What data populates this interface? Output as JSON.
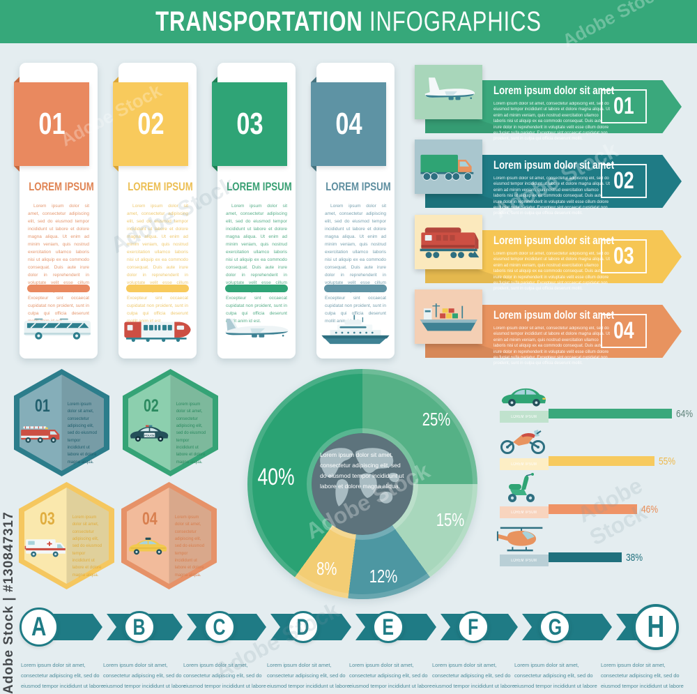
{
  "header": {
    "title_bold": "TRANSPORTATION",
    "title_light": "INFOGRAPHICS",
    "accent": "#36a87a"
  },
  "cards": [
    {
      "number": "01",
      "heading": "LOREM IPSUM",
      "accent": "#e9895f",
      "vehicle": "bus",
      "body": "Lorem ipsum dolor sit amet, consectetur adipiscing elit, sed do eiusmod tempor incididunt ut labore et dolore magna aliqua. Ut enim ad minim veniam, quis nostrud exercitation ullamco laboris nisi ut aliquip ex ea commodo consequat. Duis aute irure dolor in reprehenderit in voluptate velit esse cillum dolore eu fugiat nulla pariatur. Excepteur sint occaecat cupidatat non proident, sunt in culpa qui officia deserunt mollit anim id est."
    },
    {
      "number": "02",
      "heading": "LOREM IPSUM",
      "accent": "#f8ca5c",
      "vehicle": "train",
      "body": "Lorem ipsum dolor sit amet, consectetur adipiscing elit, sed do eiusmod tempor incididunt ut labore et dolore magna aliqua. Ut enim ad minim veniam, quis nostrud exercitation ullamco laboris nisi ut aliquip ex ea commodo consequat. Duis aute irure dolor in reprehenderit in voluptate velit esse cillum dolore eu fugiat nulla pariatur. Excepteur sint occaecat cupidatat non proident, sunt in culpa qui officia deserunt mollit anim id est."
    },
    {
      "number": "03",
      "heading": "LOREM IPSUM",
      "accent": "#2fa476",
      "vehicle": "airplane",
      "body": "Lorem ipsum dolor sit amet, consectetur adipiscing elit, sed do eiusmod tempor incididunt ut labore et dolore magna aliqua. Ut enim ad minim veniam, quis nostrud exercitation ullamco laboris nisi ut aliquip ex ea commodo consequat. Duis aute irure dolor in reprehenderit in voluptate velit esse cillum dolore eu fugiat nulla pariatur. Excepteur sint occaecat cupidatat non proident, sunt in culpa qui officia deserunt mollit anim id est."
    },
    {
      "number": "04",
      "heading": "LOREM IPSUM",
      "accent": "#5e93a4",
      "vehicle": "yacht",
      "body": "Lorem ipsum dolor sit amet, consectetur adipiscing elit, sed do eiusmod tempor incididunt ut labore et dolore magna aliqua. Ut enim ad minim veniam, quis nostrud exercitation ullamco laboris nisi ut aliquip ex ea commodo consequat. Duis aute irure dolor in reprehenderit in voluptate velit esse cillum dolore eu fugiat nulla pariatur. Excepteur sint occaecat cupidatat non proident, sunt in culpa qui officia deserunt mollit anim id est."
    }
  ],
  "arrows": [
    {
      "number": "01",
      "heading": "Lorem ipsum dolor sit amet",
      "accent": "#3aa87c",
      "tile": "#a8d6ba",
      "vehicle": "airliner",
      "body": "Lorem ipsum dolor sit amet, consectetur adipiscing elit, sed do eiusmod tempor incididunt ut labore et dolore magna aliqua. Ut enim ad minim veniam, quis nostrud exercitation ullamco laboris nisi ut aliquip ex ea commodo consequat. Duis aute irure dolor in reprehenderit in voluptate velit esse cillum dolore eu fugiat nulla pariatur. Excepteur sint occaecat cupidatat non proident, sunt in culpa qui officia deserunt mollit."
    },
    {
      "number": "02",
      "heading": "Lorem ipsum dolor sit amet",
      "accent": "#1f7b85",
      "tile": "#a9c6ce",
      "vehicle": "cargo-truck",
      "body": "Lorem ipsum dolor sit amet, consectetur adipiscing elit, sed do eiusmod tempor incididunt ut labore et dolore magna aliqua. Ut enim ad minim veniam, quis nostrud exercitation ullamco laboris nisi ut aliquip ex ea commodo consequat. Duis aute irure dolor in reprehenderit in voluptate velit esse cillum dolore eu fugiat nulla pariatur. Excepteur sint occaecat cupidatat non proident, sunt in culpa qui officia deserunt mollit."
    },
    {
      "number": "03",
      "heading": "Lorem ipsum dolor sit amet",
      "accent": "#f6c654",
      "tile": "#fbe9bd",
      "vehicle": "locomotive",
      "body": "Lorem ipsum dolor sit amet, consectetur adipiscing elit, sed do eiusmod tempor incididunt ut labore et dolore magna aliqua. Ut enim ad minim veniam, quis nostrud exercitation ullamco laboris nisi ut aliquip ex ea commodo consequat. Duis aute irure dolor in reprehenderit in voluptate velit esse cillum dolore eu fugiat nulla pariatur. Excepteur sint occaecat cupidatat non proident, sunt in culpa qui officia deserunt mollit."
    },
    {
      "number": "04",
      "heading": "Lorem ipsum dolor sit amet",
      "accent": "#e8935f",
      "tile": "#f4cfb4",
      "vehicle": "cargo-ship",
      "body": "Lorem ipsum dolor sit amet, consectetur adipiscing elit, sed do eiusmod tempor incididunt ut labore et dolore magna aliqua. Ut enim ad minim veniam, quis nostrud exercitation ullamco laboris nisi ut aliquip ex ea commodo consequat. Duis aute irure dolor in reprehenderit in voluptate velit esse cillum dolore eu fugiat nulla pariatur. Excepteur sint occaecat cupidatat non proident, sunt in culpa qui officia deserunt mollit."
    }
  ],
  "hexagons": [
    {
      "number": "01",
      "accent": "#2c7d8b",
      "vehicle": "fire-truck",
      "text": "Lorem ipsum dolor sit amet, consectetur adipiscing elit, sed do eiusmod tempor incididunt ut labore et dolore magna aliqua."
    },
    {
      "number": "02",
      "accent": "#35a376",
      "vehicle": "police-car",
      "text": "Lorem ipsum dolor sit amet, consectetur adipiscing elit, sed do eiusmod tempor incididunt ut labore et dolore magna aliqua."
    },
    {
      "number": "03",
      "accent": "#f5c75f",
      "vehicle": "ambulance",
      "text": "Lorem ipsum dolor sit amet, consectetur adipiscing elit, sed do eiusmod tempor incididunt ut labore et dolore magna aliqua."
    },
    {
      "number": "04",
      "accent": "#e69268",
      "vehicle": "taxi",
      "text": "Lorem ipsum dolor sit amet, consectetur adipiscing elit, sed do eiusmod tempor incididunt ut labore et dolore magna aliqua."
    }
  ],
  "chart_data": [
    {
      "type": "pie",
      "values": [
        25,
        15,
        12,
        8,
        40
      ],
      "labels": [
        "25%",
        "15%",
        "12%",
        "8%",
        "40%"
      ],
      "colors": [
        "#55b186",
        "#a8d7bc",
        "#4d97a2",
        "#f3cd74",
        "#2aa273"
      ],
      "start_angle_deg": 0,
      "direction": "clockwise",
      "center_graphic": "world-map",
      "center_text": "Lorem ipsum dolor sit amet, consectetur adipiscing elit, sed do eiusmod tempor incididunt ut labore et dolore magna aliqua."
    },
    {
      "type": "bar",
      "orientation": "horizontal",
      "categories": [
        "car",
        "motorcycle",
        "scooter",
        "helicopter"
      ],
      "bar_labels": [
        "LOREM IPSUM",
        "LOREM IPSUM",
        "LOREM IPSUM",
        "LOREM IPSUM"
      ],
      "values": [
        64,
        55,
        46,
        38
      ],
      "value_labels": [
        "64%",
        "55%",
        "46%",
        "38%"
      ],
      "colors": [
        "#3aa87c",
        "#f7ca5e",
        "#ef9366",
        "#20707d"
      ],
      "label_box_colors": [
        "#c0e2cd",
        "#fdeec5",
        "#f8d4be",
        "#b9cfd6"
      ],
      "value_text_colors": [
        "#5d8077",
        "#eeb84a",
        "#e98a52",
        "#20707d"
      ],
      "xlim": [
        0,
        100
      ]
    }
  ],
  "timeline": {
    "accent": "#1f7b85",
    "steps": [
      {
        "letter": "A",
        "caption": "Lorem ipsum dolor sit amet, consectetur adipiscing elit, sed do eiusmod tempor incididunt ut labore et dolore magna aliqua."
      },
      {
        "letter": "B",
        "caption": "Lorem ipsum dolor sit amet, consectetur adipiscing elit, sed do eiusmod tempor incididunt ut labore et dolore magna aliqua."
      },
      {
        "letter": "C",
        "caption": "Lorem ipsum dolor sit amet, consectetur adipiscing elit, sed do eiusmod tempor incididunt ut labore et dolore magna aliqua."
      },
      {
        "letter": "D",
        "caption": "Lorem ipsum dolor sit amet, consectetur adipiscing elit, sed do eiusmod tempor incididunt ut labore et dolore magna aliqua."
      },
      {
        "letter": "E",
        "caption": "Lorem ipsum dolor sit amet, consectetur adipiscing elit, sed do eiusmod tempor incididunt ut labore et dolore magna aliqua."
      },
      {
        "letter": "F",
        "caption": "Lorem ipsum dolor sit amet, consectetur adipiscing elit, sed do eiusmod tempor incididunt ut labore et dolore magna aliqua."
      },
      {
        "letter": "G",
        "caption": "Lorem ipsum dolor sit amet, consectetur adipiscing elit, sed do eiusmod tempor incididunt ut labore et dolore magna aliqua."
      },
      {
        "letter": "H",
        "caption": "Lorem ipsum dolor sit amet, consectetur adipiscing elit, sed do eiusmod tempor incididunt ut labore et dolore magna aliqua."
      }
    ]
  },
  "watermarks": {
    "diagonal_label": "Adobe Stock",
    "vertical_id": "Adobe Stock | #130847317"
  }
}
